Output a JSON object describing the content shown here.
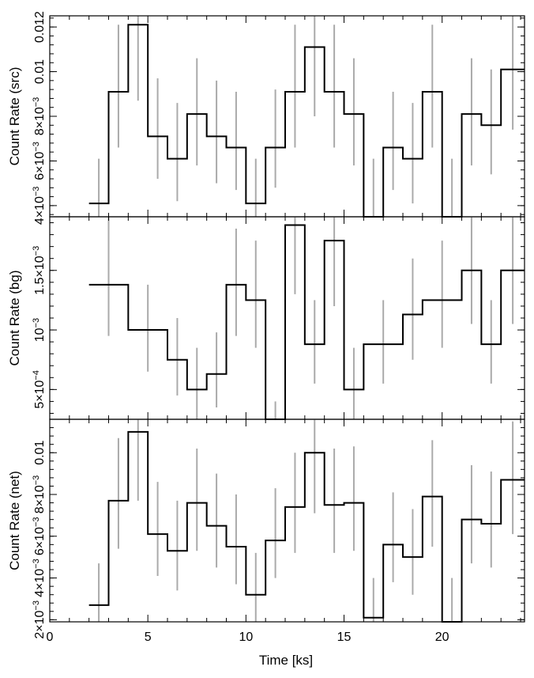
{
  "figure": {
    "xlabel": "Time [ks]",
    "xlim": [
      0,
      24.2
    ],
    "xticks": [
      0,
      5,
      10,
      15,
      20
    ],
    "xtick_labels": [
      "0",
      "5",
      "10",
      "15",
      "20"
    ]
  },
  "chart_data": [
    {
      "type": "line",
      "panel": "source",
      "ylabel": "Count Rate (src)",
      "ylim": [
        0.0035,
        0.0125
      ],
      "y_ticks": [
        {
          "value": 0.004,
          "label": "4×10⁻³"
        },
        {
          "value": 0.006,
          "label": "6×10⁻³"
        },
        {
          "value": 0.008,
          "label": "8×10⁻³"
        },
        {
          "value": 0.01,
          "label": "0.01"
        },
        {
          "value": 0.012,
          "label": "0.012"
        }
      ],
      "bins": [
        {
          "x0": 2.0,
          "x1": 3.0,
          "y": 0.0041,
          "elo": 0.0029,
          "ehi": 0.0061
        },
        {
          "x0": 3.0,
          "x1": 4.0,
          "y": 0.0091,
          "elo": 0.0066,
          "ehi": 0.0121
        },
        {
          "x0": 4.0,
          "x1": 5.0,
          "y": 0.0121,
          "elo": 0.0087,
          "ehi": 0.0128
        },
        {
          "x0": 5.0,
          "x1": 6.0,
          "y": 0.0071,
          "elo": 0.0052,
          "ehi": 0.0097
        },
        {
          "x0": 6.0,
          "x1": 7.0,
          "y": 0.0061,
          "elo": 0.0042,
          "ehi": 0.0086
        },
        {
          "x0": 7.0,
          "x1": 8.0,
          "y": 0.0081,
          "elo": 0.0058,
          "ehi": 0.0106
        },
        {
          "x0": 8.0,
          "x1": 9.0,
          "y": 0.0071,
          "elo": 0.005,
          "ehi": 0.0096
        },
        {
          "x0": 9.0,
          "x1": 10.0,
          "y": 0.0066,
          "elo": 0.0047,
          "ehi": 0.0091
        },
        {
          "x0": 10.0,
          "x1": 11.0,
          "y": 0.0041,
          "elo": 0.0029,
          "ehi": 0.0061
        },
        {
          "x0": 11.0,
          "x1": 12.0,
          "y": 0.0066,
          "elo": 0.0048,
          "ehi": 0.0092
        },
        {
          "x0": 12.0,
          "x1": 13.0,
          "y": 0.0091,
          "elo": 0.0066,
          "ehi": 0.0121
        },
        {
          "x0": 13.0,
          "x1": 14.0,
          "y": 0.0111,
          "elo": 0.008,
          "ehi": 0.0128
        },
        {
          "x0": 14.0,
          "x1": 15.0,
          "y": 0.0091,
          "elo": 0.0066,
          "ehi": 0.0121
        },
        {
          "x0": 15.0,
          "x1": 16.0,
          "y": 0.0081,
          "elo": 0.0058,
          "ehi": 0.0106
        },
        {
          "x0": 16.0,
          "x1": 17.0,
          "y": 0.0035,
          "elo": 0.0029,
          "ehi": 0.0061
        },
        {
          "x0": 17.0,
          "x1": 18.0,
          "y": 0.0066,
          "elo": 0.0047,
          "ehi": 0.0091
        },
        {
          "x0": 18.0,
          "x1": 19.0,
          "y": 0.0061,
          "elo": 0.0041,
          "ehi": 0.0086
        },
        {
          "x0": 19.0,
          "x1": 20.0,
          "y": 0.0091,
          "elo": 0.0066,
          "ehi": 0.0121
        },
        {
          "x0": 20.0,
          "x1": 21.0,
          "y": 0.0035,
          "elo": 0.0029,
          "ehi": 0.0061
        },
        {
          "x0": 21.0,
          "x1": 22.0,
          "y": 0.0081,
          "elo": 0.0058,
          "ehi": 0.0106
        },
        {
          "x0": 22.0,
          "x1": 23.0,
          "y": 0.0076,
          "elo": 0.0054,
          "ehi": 0.0101
        },
        {
          "x0": 23.0,
          "x1": 24.2,
          "y": 0.0101,
          "elo": 0.0074,
          "ehi": 0.0128
        }
      ]
    },
    {
      "type": "line",
      "panel": "background",
      "ylabel": "Count Rate (bg)",
      "ylim": [
        0.00025,
        0.00195
      ],
      "y_ticks": [
        {
          "value": 0.0005,
          "label": "5×10⁻⁴"
        },
        {
          "value": 0.001,
          "label": "10⁻³"
        },
        {
          "value": 0.0015,
          "label": "1.5×10⁻³"
        }
      ],
      "bins": [
        {
          "x0": 2.0,
          "x1": 4.0,
          "y": 0.00138,
          "elo": 0.00095,
          "ehi": 0.00195
        },
        {
          "x0": 4.0,
          "x1": 6.0,
          "y": 0.001,
          "elo": 0.00065,
          "ehi": 0.00138
        },
        {
          "x0": 6.0,
          "x1": 7.0,
          "y": 0.00075,
          "elo": 0.00045,
          "ehi": 0.0011
        },
        {
          "x0": 7.0,
          "x1": 8.0,
          "y": 0.0005,
          "elo": 0.00025,
          "ehi": 0.00085
        },
        {
          "x0": 8.0,
          "x1": 9.0,
          "y": 0.00063,
          "elo": 0.00035,
          "ehi": 0.00098
        },
        {
          "x0": 9.0,
          "x1": 10.0,
          "y": 0.00138,
          "elo": 0.00095,
          "ehi": 0.00185
        },
        {
          "x0": 10.0,
          "x1": 11.0,
          "y": 0.00125,
          "elo": 0.00085,
          "ehi": 0.00175
        },
        {
          "x0": 11.0,
          "x1": 12.0,
          "y": 0.00025,
          "elo": 0.00025,
          "ehi": 0.0004
        },
        {
          "x0": 12.0,
          "x1": 13.0,
          "y": 0.00188,
          "elo": 0.0013,
          "ehi": 0.00195
        },
        {
          "x0": 13.0,
          "x1": 14.0,
          "y": 0.00088,
          "elo": 0.00055,
          "ehi": 0.00125
        },
        {
          "x0": 14.0,
          "x1": 15.0,
          "y": 0.00175,
          "elo": 0.0012,
          "ehi": 0.00195
        },
        {
          "x0": 15.0,
          "x1": 16.0,
          "y": 0.0005,
          "elo": 0.00025,
          "ehi": 0.00085
        },
        {
          "x0": 16.0,
          "x1": 18.0,
          "y": 0.00088,
          "elo": 0.00055,
          "ehi": 0.00125
        },
        {
          "x0": 18.0,
          "x1": 19.0,
          "y": 0.00113,
          "elo": 0.00075,
          "ehi": 0.0016
        },
        {
          "x0": 19.0,
          "x1": 21.0,
          "y": 0.00125,
          "elo": 0.00085,
          "ehi": 0.00175
        },
        {
          "x0": 21.0,
          "x1": 22.0,
          "y": 0.0015,
          "elo": 0.00105,
          "ehi": 0.00195
        },
        {
          "x0": 22.0,
          "x1": 23.0,
          "y": 0.00088,
          "elo": 0.00055,
          "ehi": 0.00125
        },
        {
          "x0": 23.0,
          "x1": 24.2,
          "y": 0.0015,
          "elo": 0.00105,
          "ehi": 0.00195
        }
      ]
    },
    {
      "type": "line",
      "panel": "net",
      "ylabel": "Count Rate (net)",
      "ylim": [
        0.0019,
        0.0116
      ],
      "y_ticks": [
        {
          "value": 0.002,
          "label": "2×10⁻³"
        },
        {
          "value": 0.004,
          "label": "4×10⁻³"
        },
        {
          "value": 0.006,
          "label": "6×10⁻³"
        },
        {
          "value": 0.008,
          "label": "8×10⁻³"
        },
        {
          "value": 0.01,
          "label": "0.01"
        }
      ],
      "bins": [
        {
          "x0": 2.0,
          "x1": 3.0,
          "y": 0.0027,
          "elo": 0.0019,
          "ehi": 0.0047
        },
        {
          "x0": 3.0,
          "x1": 4.0,
          "y": 0.0077,
          "elo": 0.0054,
          "ehi": 0.0107
        },
        {
          "x0": 4.0,
          "x1": 5.0,
          "y": 0.011,
          "elo": 0.0077,
          "ehi": 0.0116
        },
        {
          "x0": 5.0,
          "x1": 6.0,
          "y": 0.0061,
          "elo": 0.0041,
          "ehi": 0.0086
        },
        {
          "x0": 6.0,
          "x1": 7.0,
          "y": 0.0053,
          "elo": 0.0034,
          "ehi": 0.0077
        },
        {
          "x0": 7.0,
          "x1": 8.0,
          "y": 0.0076,
          "elo": 0.0053,
          "ehi": 0.0102
        },
        {
          "x0": 8.0,
          "x1": 9.0,
          "y": 0.0065,
          "elo": 0.0045,
          "ehi": 0.009
        },
        {
          "x0": 9.0,
          "x1": 10.0,
          "y": 0.0055,
          "elo": 0.0037,
          "ehi": 0.008
        },
        {
          "x0": 10.0,
          "x1": 11.0,
          "y": 0.0032,
          "elo": 0.0019,
          "ehi": 0.0052
        },
        {
          "x0": 11.0,
          "x1": 12.0,
          "y": 0.0058,
          "elo": 0.004,
          "ehi": 0.0083
        },
        {
          "x0": 12.0,
          "x1": 13.0,
          "y": 0.0074,
          "elo": 0.0052,
          "ehi": 0.01
        },
        {
          "x0": 13.0,
          "x1": 14.0,
          "y": 0.01,
          "elo": 0.0071,
          "ehi": 0.0116
        },
        {
          "x0": 14.0,
          "x1": 15.0,
          "y": 0.0075,
          "elo": 0.0052,
          "ehi": 0.0102
        },
        {
          "x0": 15.0,
          "x1": 16.0,
          "y": 0.0076,
          "elo": 0.0053,
          "ehi": 0.0103
        },
        {
          "x0": 16.0,
          "x1": 17.0,
          "y": 0.0021,
          "elo": 0.0019,
          "ehi": 0.004
        },
        {
          "x0": 17.0,
          "x1": 18.0,
          "y": 0.0056,
          "elo": 0.0038,
          "ehi": 0.0081
        },
        {
          "x0": 18.0,
          "x1": 19.0,
          "y": 0.005,
          "elo": 0.0032,
          "ehi": 0.0073
        },
        {
          "x0": 19.0,
          "x1": 20.0,
          "y": 0.0079,
          "elo": 0.0055,
          "ehi": 0.0106
        },
        {
          "x0": 20.0,
          "x1": 21.0,
          "y": 0.0019,
          "elo": 0.0019,
          "ehi": 0.004
        },
        {
          "x0": 21.0,
          "x1": 22.0,
          "y": 0.0068,
          "elo": 0.0047,
          "ehi": 0.0094
        },
        {
          "x0": 22.0,
          "x1": 23.0,
          "y": 0.0066,
          "elo": 0.0045,
          "ehi": 0.0091
        },
        {
          "x0": 23.0,
          "x1": 24.2,
          "y": 0.0087,
          "elo": 0.0061,
          "ehi": 0.0115
        }
      ]
    }
  ]
}
